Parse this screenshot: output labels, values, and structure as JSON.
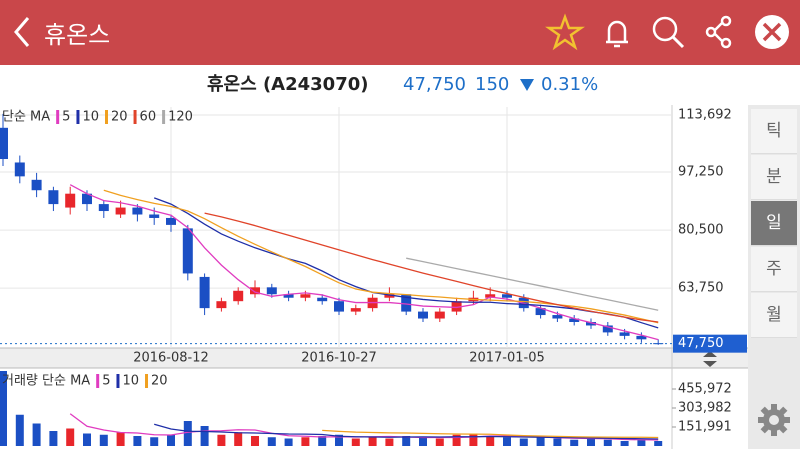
{
  "header": {
    "title": "휴온스"
  },
  "stock": {
    "name": "휴온스 (A243070)",
    "price": "47,750",
    "change": "150",
    "change_pct": "0.31%"
  },
  "tabs": [
    "틱",
    "분",
    "일",
    "주",
    "월"
  ],
  "selected_tab": 2,
  "chart_data": [
    {
      "type": "candlestick",
      "legend_title": "단순 MA",
      "categories": [
        null,
        null,
        null,
        null,
        null,
        null,
        null,
        null,
        null,
        null,
        "2016-08-12",
        null,
        null,
        null,
        null,
        null,
        null,
        null,
        null,
        null,
        "2016-10-27",
        null,
        null,
        null,
        null,
        null,
        null,
        null,
        null,
        null,
        "2017-01-05",
        null,
        null,
        null,
        null,
        null,
        null,
        null,
        null,
        null
      ],
      "open": [
        110000,
        100000,
        95000,
        92000,
        87000,
        91000,
        88000,
        85000,
        87000,
        85000,
        84000,
        81000,
        67000,
        58000,
        60000,
        62000,
        64000,
        62000,
        61000,
        61000,
        60000,
        57000,
        58000,
        61000,
        62000,
        57000,
        55000,
        57000,
        60000,
        61000,
        62000,
        61000,
        58000,
        56000,
        55000,
        54000,
        53000,
        51000,
        50000,
        47900
      ],
      "high": [
        114000,
        102000,
        97000,
        93000,
        93000,
        92000,
        89000,
        89000,
        88000,
        87000,
        85000,
        82000,
        68000,
        61000,
        64000,
        66000,
        65000,
        63000,
        63000,
        62000,
        61000,
        59000,
        62000,
        64000,
        62000,
        58000,
        58000,
        61000,
        63000,
        64000,
        63000,
        62000,
        59000,
        57000,
        56000,
        55000,
        54000,
        52000,
        51000,
        49000
      ],
      "low": [
        99000,
        94000,
        90000,
        86000,
        85000,
        86000,
        84000,
        84000,
        83000,
        82000,
        80000,
        66000,
        56000,
        57000,
        59000,
        61000,
        61000,
        60000,
        60000,
        59000,
        56000,
        56000,
        57000,
        60000,
        56000,
        54000,
        54000,
        56000,
        59000,
        60000,
        60000,
        57000,
        55000,
        54000,
        53000,
        52000,
        50000,
        49000,
        48000,
        47400
      ],
      "close": [
        101000,
        96000,
        92000,
        88000,
        91000,
        88000,
        86000,
        87000,
        85000,
        84000,
        82000,
        68000,
        58000,
        60000,
        63000,
        64000,
        62000,
        61000,
        62000,
        60000,
        57000,
        58000,
        61000,
        62000,
        57000,
        55000,
        57000,
        60000,
        61000,
        62000,
        61000,
        58000,
        56000,
        55000,
        54000,
        53000,
        51000,
        50000,
        49000,
        47750
      ],
      "up_color": "#e8262b",
      "down_color": "#1b4fc4",
      "series": [
        {
          "name": "5",
          "color": "#e03cc0",
          "values": [
            null,
            null,
            null,
            null,
            93600,
            91000,
            89000,
            88400,
            87400,
            86000,
            84800,
            81200,
            75400,
            70400,
            66200,
            62600,
            61400,
            62000,
            62400,
            61800,
            60400,
            59600,
            59600,
            59600,
            59200,
            58600,
            58400,
            58200,
            59000,
            61200,
            60600,
            59400,
            58000,
            56400,
            55000,
            53800,
            52600,
            51400,
            50200,
            48900
          ]
        },
        {
          "name": "10",
          "color": "#1f2fa8",
          "values": [
            null,
            null,
            null,
            null,
            null,
            null,
            null,
            null,
            null,
            89800,
            88000,
            85300,
            82200,
            79400,
            77300,
            75400,
            73800,
            72200,
            70900,
            68700,
            66200,
            64200,
            62500,
            61800,
            61100,
            60500,
            60100,
            59800,
            59700,
            59700,
            59300,
            59100,
            58800,
            58300,
            57800,
            57000,
            56300,
            55400,
            53800,
            52300
          ]
        },
        {
          "name": "20",
          "color": "#f0a020",
          "values": [
            null,
            null,
            null,
            null,
            null,
            null,
            92000,
            90500,
            89300,
            88200,
            87300,
            86000,
            83800,
            81200,
            78700,
            76400,
            74200,
            72100,
            70000,
            67600,
            65300,
            63500,
            62600,
            62200,
            61900,
            61500,
            61200,
            60800,
            60500,
            60300,
            60100,
            59900,
            59500,
            59000,
            58500,
            57800,
            56900,
            56000,
            54900,
            53800
          ]
        },
        {
          "name": "60",
          "color": "#e0442a",
          "values": [
            null,
            null,
            null,
            null,
            null,
            null,
            null,
            null,
            null,
            null,
            null,
            null,
            85400,
            84300,
            83100,
            81800,
            80400,
            79000,
            77600,
            76200,
            74800,
            73400,
            72000,
            70700,
            69400,
            68100,
            66900,
            65700,
            64500,
            63300,
            62200,
            61100,
            60000,
            59000,
            58000,
            57100,
            56200,
            55400,
            54600,
            54000
          ]
        },
        {
          "name": "120",
          "color": "#aaaaaa",
          "values": [
            null,
            null,
            null,
            null,
            null,
            null,
            null,
            null,
            null,
            null,
            null,
            null,
            null,
            null,
            null,
            null,
            null,
            null,
            null,
            null,
            null,
            null,
            null,
            null,
            72400,
            71400,
            70400,
            69400,
            68400,
            67400,
            66400,
            65400,
            64400,
            63400,
            62400,
            61400,
            60400,
            59400,
            58400,
            57400
          ]
        }
      ],
      "ylim": [
        46500,
        116000
      ],
      "yticks": [
        {
          "value": 113692,
          "label": "113,692"
        },
        {
          "value": 97250,
          "label": "97,250"
        },
        {
          "value": 80500,
          "label": "80,500"
        },
        {
          "value": 63750,
          "label": "63,750"
        }
      ],
      "last_price": {
        "value": 47750,
        "label": "47,750"
      },
      "grid": true
    },
    {
      "type": "volume",
      "legend_title": "거래량 단순 MA",
      "values": [
        600000,
        250000,
        180000,
        120000,
        140000,
        100000,
        90000,
        110000,
        80000,
        70000,
        90000,
        200000,
        160000,
        90000,
        110000,
        80000,
        70000,
        60000,
        70000,
        80000,
        90000,
        60000,
        70000,
        60000,
        80000,
        70000,
        60000,
        90000,
        100000,
        80000,
        70000,
        60000,
        70000,
        60000,
        50000,
        60000,
        50000,
        40000,
        50000,
        40000
      ],
      "series": [
        {
          "name": "5",
          "color": "#e03cc0",
          "values": [
            null,
            null,
            null,
            null,
            258000,
            158000,
            128000,
            108000,
            104000,
            90000,
            88000,
            110000,
            120000,
            122000,
            130000,
            128000,
            102000,
            82000,
            78000,
            72000,
            74000,
            72000,
            74000,
            76000,
            72000,
            68000,
            68000,
            68000,
            72000,
            80000,
            80000,
            78000,
            72000,
            66000,
            62000,
            60000,
            58000,
            52000,
            50000,
            48000
          ]
        },
        {
          "name": "10",
          "color": "#1f2fa8",
          "values": [
            null,
            null,
            null,
            null,
            null,
            null,
            null,
            null,
            null,
            174000,
            136000,
            118000,
            116000,
            112000,
            106000,
            104000,
            100000,
            96000,
            95000,
            92000,
            78000,
            74000,
            72000,
            70000,
            72000,
            73000,
            72000,
            74000,
            74000,
            76000,
            74000,
            72000,
            70000,
            68000,
            67000,
            64000,
            62000,
            60000,
            58000,
            56000
          ]
        },
        {
          "name": "20",
          "color": "#f0a020",
          "values": [
            null,
            null,
            null,
            null,
            null,
            null,
            null,
            null,
            null,
            null,
            null,
            null,
            null,
            null,
            null,
            null,
            null,
            null,
            null,
            125000,
            117000,
            111000,
            108000,
            105000,
            104000,
            101000,
            98000,
            96000,
            95000,
            94000,
            88000,
            83000,
            80000,
            77000,
            74000,
            72000,
            71000,
            70000,
            70000,
            68000
          ]
        }
      ],
      "ylim": [
        0,
        608000
      ],
      "yticks": [
        {
          "value": 455972,
          "label": "455,972"
        },
        {
          "value": 303982,
          "label": "303,982"
        },
        {
          "value": 151991,
          "label": "151,991"
        }
      ]
    }
  ]
}
